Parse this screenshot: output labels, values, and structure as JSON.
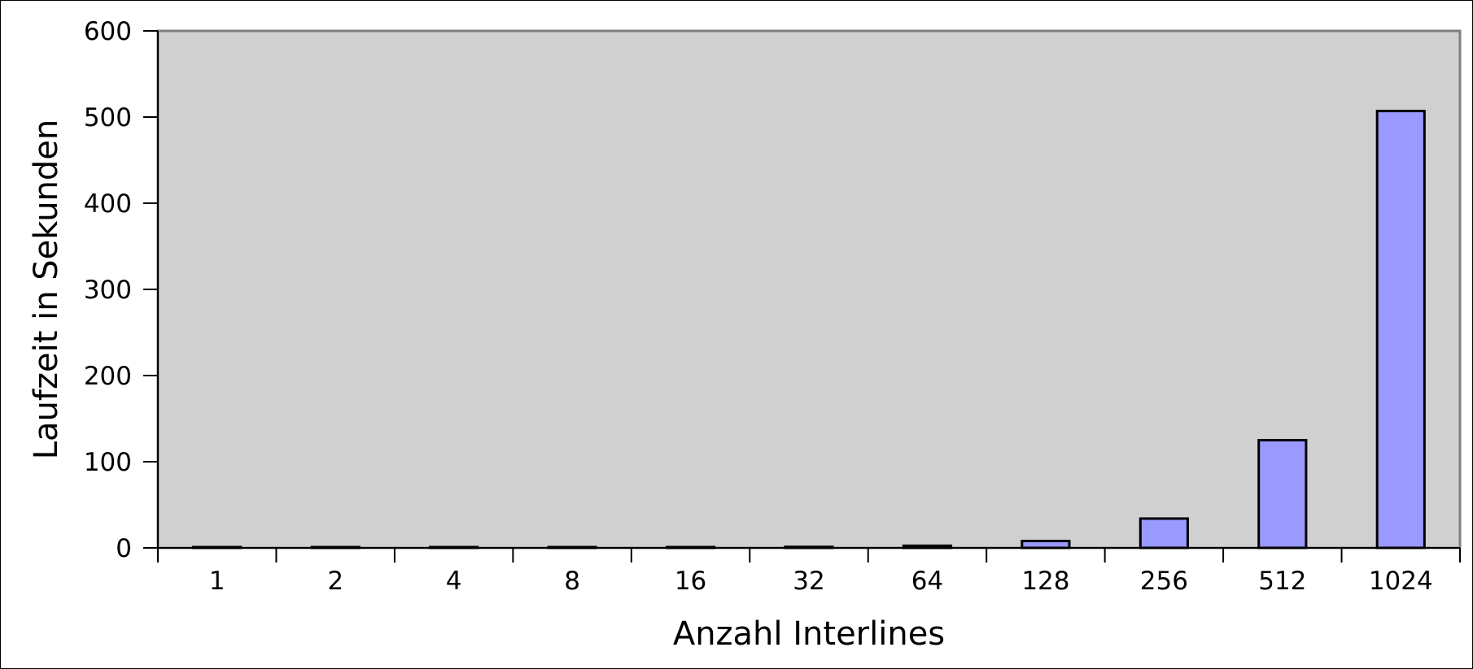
{
  "chart_data": {
    "type": "bar",
    "categories": [
      "1",
      "2",
      "4",
      "8",
      "16",
      "32",
      "64",
      "128",
      "256",
      "512",
      "1024"
    ],
    "values": [
      0.1,
      0.2,
      0.3,
      0.4,
      0.6,
      1.2,
      2.5,
      8,
      34,
      125,
      507
    ],
    "xlabel": "Anzahl Interlines",
    "ylabel": "Laufzeit in Sekunden",
    "ylim": [
      0,
      600
    ],
    "yticks": [
      "0",
      "100",
      "200",
      "300",
      "400",
      "500",
      "600"
    ],
    "grid": false,
    "legend": false,
    "colors": {
      "bar_fill": "#9999ff",
      "bar_stroke": "#000000",
      "plot_background": "#d0d0d0",
      "plot_border": "#808080"
    }
  }
}
